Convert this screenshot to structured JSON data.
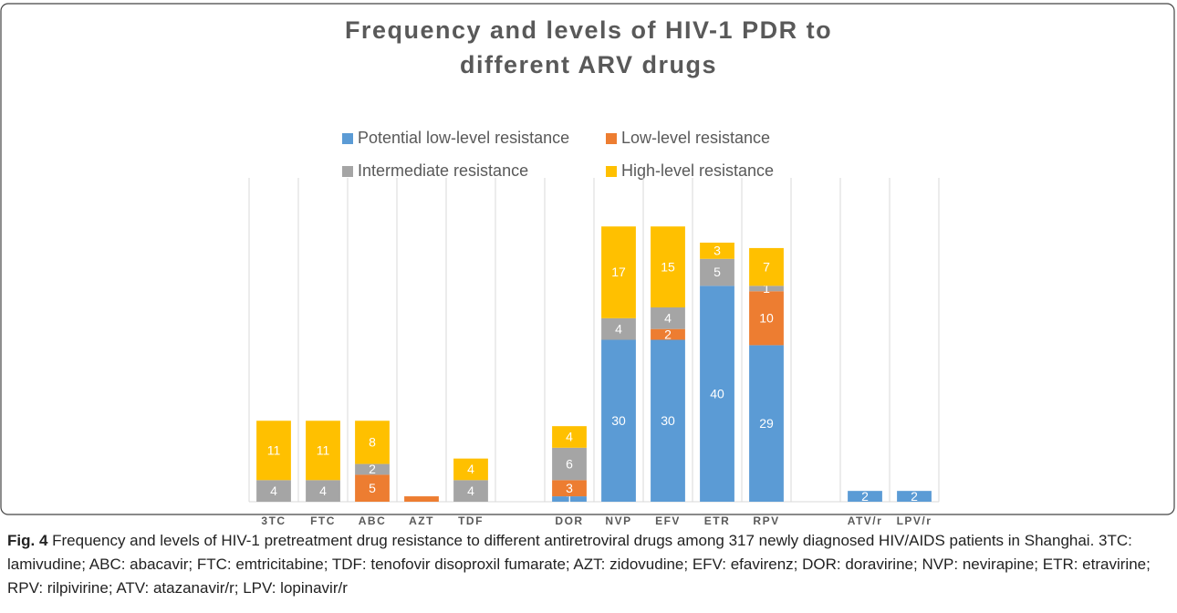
{
  "chart_data": {
    "type": "stacked_bar",
    "title": "Frequency and levels of HIV-1 PDR to different ARV drugs",
    "categories": [
      "3TC",
      "FTC",
      "ABC",
      "AZT",
      "TDF",
      null,
      "DOR",
      "NVP",
      "EFV",
      "ETR",
      "RPV",
      null,
      "ATV/r",
      "LPV/r"
    ],
    "series": [
      {
        "name": "Potential low-level resistance",
        "color": "#5b9bd5",
        "values": [
          0,
          0,
          0,
          0,
          0,
          null,
          1,
          30,
          30,
          40,
          29,
          null,
          2,
          2
        ],
        "value_labels": [
          null,
          null,
          null,
          null,
          null,
          null,
          "1",
          "30",
          "30",
          "40",
          "29",
          null,
          "2",
          "2"
        ]
      },
      {
        "name": "Low-level resistance",
        "color": "#ed7d31",
        "values": [
          0,
          0,
          5,
          1,
          0,
          null,
          3,
          0,
          2,
          0,
          10,
          null,
          0,
          0
        ],
        "value_labels": [
          null,
          null,
          "5",
          null,
          null,
          null,
          "3",
          null,
          "2",
          null,
          "10",
          null,
          null,
          null
        ]
      },
      {
        "name": "Intermediate resistance",
        "color": "#a5a5a5",
        "values": [
          4,
          4,
          2,
          0,
          4,
          null,
          6,
          4,
          4,
          5,
          1,
          null,
          0,
          0
        ],
        "value_labels": [
          "4",
          "4",
          "2",
          null,
          "4",
          null,
          "6",
          "4",
          "4",
          "5",
          "1",
          null,
          null,
          null
        ]
      },
      {
        "name": "High-level resistance",
        "color": "#ffc000",
        "values": [
          11,
          11,
          8,
          0,
          4,
          null,
          4,
          17,
          15,
          3,
          7,
          null,
          0,
          0
        ],
        "value_labels": [
          "11",
          "11",
          "8",
          null,
          "4",
          null,
          "4",
          "17",
          "15",
          "3",
          "7",
          null,
          null,
          null
        ]
      }
    ],
    "ylim": [
      0,
      60
    ],
    "grid": true
  },
  "caption": {
    "label": "Fig. 4",
    "text": "Frequency and levels of HIV-1 pretreatment drug resistance to different antiretroviral drugs among 317 newly diagnosed HIV/AIDS patients in Shanghai. 3TC: lamivudine; ABC: abacavir; FTC: emtricitabine; TDF: tenofovir disoproxil fumarate; AZT: zidovudine; EFV: efavirenz; DOR: doravirine; NVP: nevirapine; ETR: etravirine; RPV: rilpivirine; ATV: atazanavir/r; LPV: lopinavir/r"
  }
}
